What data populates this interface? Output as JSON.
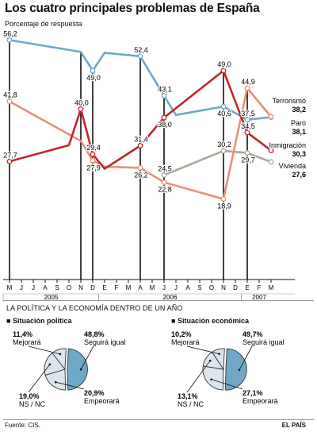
{
  "header": {
    "title": "Los cuatro principales problemas de España",
    "subtitle": "Porcentaje de respuesta"
  },
  "colors": {
    "Terrorismo": "#e8907a",
    "Paro": "#6fa8c6",
    "Inmigración": "#c0272d",
    "Vivienda": "#a8ab98",
    "pie_selected": "#6fa8c6",
    "pie_other": "#dbe6ec"
  },
  "chart_data": [
    {
      "type": "line",
      "ylim": [
        0,
        60
      ],
      "grid": false,
      "months": [
        "M",
        "J",
        "J",
        "A",
        "S",
        "O",
        "N",
        "D",
        "E",
        "F",
        "M",
        "A",
        "M",
        "J",
        "J",
        "A",
        "S",
        "O",
        "N",
        "D",
        "E",
        "F",
        "M"
      ],
      "years": [
        {
          "label": "2005",
          "start_index": 0,
          "end_index": 7
        },
        {
          "label": "2006",
          "start_index": 8,
          "end_index": 19
        },
        {
          "label": "2007",
          "start_index": 20,
          "end_index": 22
        }
      ],
      "series": [
        {
          "name": "Paro",
          "end_value": "38,1",
          "points": [
            [
              0,
              56.2
            ],
            [
              6,
              53.4
            ],
            [
              7,
              49.0
            ],
            [
              8,
              53.2
            ],
            [
              11,
              52.4
            ],
            [
              13,
              43.1
            ],
            [
              14,
              38.6
            ],
            [
              18,
              40.6
            ],
            [
              20,
              37.5
            ],
            [
              22,
              38.1
            ]
          ],
          "labels": [
            {
              "index": 0,
              "text": "56,2",
              "pos": "above"
            },
            {
              "index": 7,
              "text": "49,0",
              "pos": "below"
            },
            {
              "index": 11,
              "text": "52,4",
              "pos": "above"
            },
            {
              "index": 13,
              "text": "43,1",
              "pos": "above"
            },
            {
              "index": 18,
              "text": "40,6",
              "pos": "below"
            },
            {
              "index": 20,
              "text": "37,5",
              "pos": "above"
            }
          ]
        },
        {
          "name": "Terrorismo",
          "end_value": "38,2",
          "points": [
            [
              0,
              41.8
            ],
            [
              6,
              32.5
            ],
            [
              7,
              27.9
            ],
            [
              8,
              26.5
            ],
            [
              11,
              26.2
            ],
            [
              13,
              22.8
            ],
            [
              18,
              18.9
            ],
            [
              20,
              44.9
            ],
            [
              22,
              38.2
            ]
          ],
          "labels": [
            {
              "index": 0,
              "text": "41,8",
              "pos": "above"
            },
            {
              "index": 7,
              "text": "27,9",
              "pos": "below"
            },
            {
              "index": 11,
              "text": "26,2",
              "pos": "below"
            },
            {
              "index": 13,
              "text": "22,8",
              "pos": "below"
            },
            {
              "index": 18,
              "text": "18,9",
              "pos": "below"
            },
            {
              "index": 20,
              "text": "44,9",
              "pos": "above"
            }
          ]
        },
        {
          "name": "Inmigración",
          "end_value": "30,3",
          "points": [
            [
              0,
              27.7
            ],
            [
              5,
              31.5
            ],
            [
              6,
              40.0
            ],
            [
              7,
              29.4
            ],
            [
              8,
              26.0
            ],
            [
              11,
              31.4
            ],
            [
              13,
              38.0
            ],
            [
              18,
              49.0
            ],
            [
              20,
              34.5
            ],
            [
              22,
              30.3
            ]
          ],
          "labels": [
            {
              "index": 0,
              "text": "27,7",
              "pos": "above"
            },
            {
              "index": 6,
              "text": "40,0",
              "pos": "above"
            },
            {
              "index": 7,
              "text": "29,4",
              "pos": "above"
            },
            {
              "index": 11,
              "text": "31,4",
              "pos": "above"
            },
            {
              "index": 13,
              "text": "38,0",
              "pos": "below"
            },
            {
              "index": 18,
              "text": "49,0",
              "pos": "above"
            },
            {
              "index": 20,
              "text": "34,5",
              "pos": "above"
            }
          ]
        },
        {
          "name": "Vivienda",
          "end_value": "27,6",
          "points": [
            [
              13,
              24.5
            ],
            [
              18,
              30.2
            ],
            [
              20,
              29.7
            ],
            [
              22,
              27.6
            ]
          ],
          "labels": [
            {
              "index": 13,
              "text": "24,5",
              "pos": "above"
            },
            {
              "index": 18,
              "text": "30,2",
              "pos": "above"
            },
            {
              "index": 20,
              "text": "29,7",
              "pos": "below"
            }
          ]
        }
      ]
    },
    {
      "type": "pie",
      "title": "Situación política",
      "slices": [
        {
          "label": "Seguirá igual",
          "value": 48.8,
          "text": "48,8%",
          "selected": true
        },
        {
          "label": "Empeorará",
          "value": 20.9,
          "text": "20,9%"
        },
        {
          "label": "NS / NC",
          "value": 19.0,
          "text": "19,0%"
        },
        {
          "label": "Mejorará",
          "value": 11.4,
          "text": "11,4%"
        }
      ]
    },
    {
      "type": "pie",
      "title": "Situación económica",
      "slices": [
        {
          "label": "Seguirá igual",
          "value": 49.7,
          "text": "49,7%",
          "selected": true
        },
        {
          "label": "Empeorará",
          "value": 27.1,
          "text": "27,1%"
        },
        {
          "label": "NS / NC",
          "value": 13.1,
          "text": "13,1%"
        },
        {
          "label": "Mejorará",
          "value": 10.2,
          "text": "10,2%"
        }
      ]
    }
  ],
  "section": {
    "title": "LA POLÍTICA Y LA ECONOMÍA DENTRO DE UN AÑO",
    "left_title": "Situación política",
    "right_title": "Situación económica"
  },
  "footer": {
    "source": "Fuente: CIS.",
    "brand": "EL PAÍS"
  }
}
